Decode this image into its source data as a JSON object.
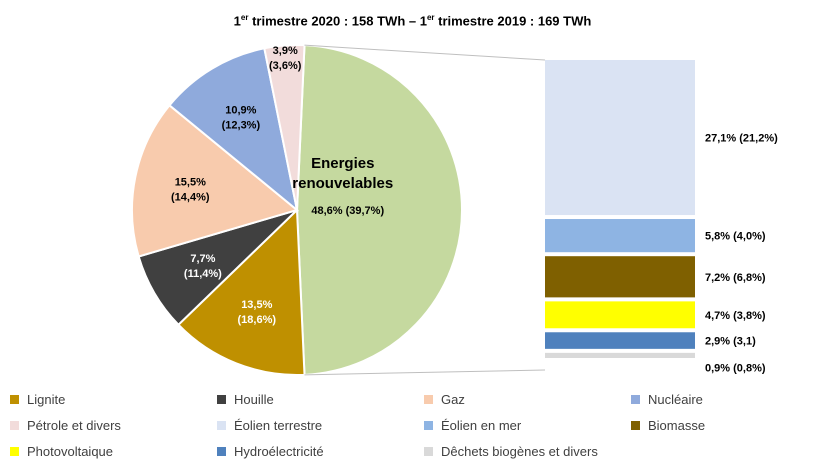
{
  "title": {
    "part1": "1",
    "sup1": "er",
    "part2": " trimestre 2020 : 158 TWh – 1",
    "sup2": "er",
    "part3": " trimestre 2019 : 169 TWh"
  },
  "chart_data": [
    {
      "type": "pie",
      "slices": [
        {
          "name": "Lignite",
          "value": 13.5,
          "prev": 18.6,
          "label": "13,5%",
          "prev_label": "(18,6%)",
          "color": "#bf9000"
        },
        {
          "name": "Houille",
          "value": 7.7,
          "prev": 11.4,
          "label": "7,7%",
          "prev_label": "(11,4%)",
          "color": "#404040"
        },
        {
          "name": "Gaz",
          "value": 15.5,
          "prev": 14.4,
          "label": "15,5%",
          "prev_label": "(14,4%)",
          "color": "#f8cbad"
        },
        {
          "name": "Nucléaire",
          "value": 10.9,
          "prev": 12.3,
          "label": "10,9%",
          "prev_label": "(12,3%)",
          "color": "#8faadc"
        },
        {
          "name": "Pétrole et divers",
          "value": 3.9,
          "prev": 3.6,
          "label": "3,9%",
          "prev_label": "(3,6%)",
          "color": "#f2dcdb"
        },
        {
          "name": "Energies renouvelables",
          "value": 48.6,
          "prev": 39.7,
          "label": "48,6% (39,7%)",
          "title_line1": "Energies",
          "title_line2": "renouvelables",
          "color": "#c5d99f"
        }
      ]
    },
    {
      "type": "bar",
      "stacked": true,
      "segments": [
        {
          "name": "Éolien terrestre",
          "value": 27.1,
          "prev": 21.2,
          "label": "27,1% (21,2%)",
          "color": "#dae3f3"
        },
        {
          "name": "Éolien en mer",
          "value": 5.8,
          "prev": 4.0,
          "label": "5,8% (4,0%)",
          "color": "#8eb4e3"
        },
        {
          "name": "Biomasse",
          "value": 7.2,
          "prev": 6.8,
          "label": "7,2% (6,8%)",
          "color": "#7f6000"
        },
        {
          "name": "Photovoltaique",
          "value": 4.7,
          "prev": 3.8,
          "label": "4,7% (3,8%)",
          "color": "#ffff00"
        },
        {
          "name": "Hydroélectricité",
          "value": 2.9,
          "prev": 3.1,
          "label": "2,9% (3,1)",
          "color": "#4f81bd"
        },
        {
          "name": "Dêchets biogènes et divers",
          "value": 0.9,
          "prev": 0.8,
          "label": "0,9% (0,8%)",
          "color": "#d9d9d9"
        }
      ]
    }
  ],
  "legend": [
    {
      "label": "Lignite",
      "color": "#bf9000"
    },
    {
      "label": "Houille",
      "color": "#404040"
    },
    {
      "label": "Gaz",
      "color": "#f8cbad"
    },
    {
      "label": "Nucléaire",
      "color": "#8faadc"
    },
    {
      "label": "Pétrole et divers",
      "color": "#f2dcdb"
    },
    {
      "label": "Éolien terrestre",
      "color": "#dae3f3"
    },
    {
      "label": "Éolien en mer",
      "color": "#8eb4e3"
    },
    {
      "label": "Biomasse",
      "color": "#7f6000"
    },
    {
      "label": "Photovoltaique",
      "color": "#ffff00"
    },
    {
      "label": "Hydroélectricité",
      "color": "#4f81bd"
    },
    {
      "label": "Dêchets biogènes et divers",
      "color": "#d9d9d9"
    }
  ]
}
